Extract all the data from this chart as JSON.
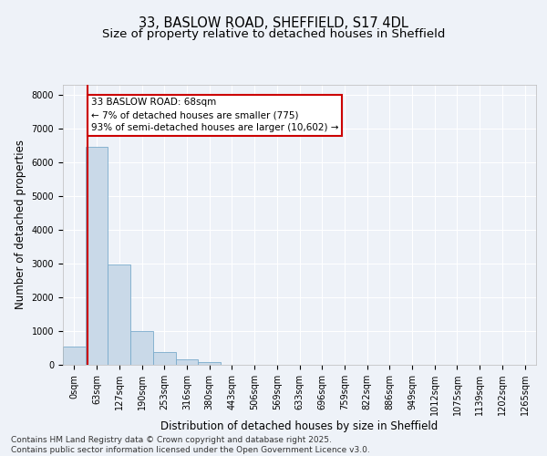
{
  "title_line1": "33, BASLOW ROAD, SHEFFIELD, S17 4DL",
  "title_line2": "Size of property relative to detached houses in Sheffield",
  "xlabel": "Distribution of detached houses by size in Sheffield",
  "ylabel": "Number of detached properties",
  "bar_labels": [
    "0sqm",
    "63sqm",
    "127sqm",
    "190sqm",
    "253sqm",
    "316sqm",
    "380sqm",
    "443sqm",
    "506sqm",
    "569sqm",
    "633sqm",
    "696sqm",
    "759sqm",
    "822sqm",
    "886sqm",
    "949sqm",
    "1012sqm",
    "1075sqm",
    "1139sqm",
    "1202sqm",
    "1265sqm"
  ],
  "bar_values": [
    550,
    6450,
    2980,
    1000,
    370,
    150,
    90,
    0,
    0,
    0,
    0,
    0,
    0,
    0,
    0,
    0,
    0,
    0,
    0,
    0,
    0
  ],
  "bar_color": "#c9d9e8",
  "bar_edge_color": "#7aabcc",
  "annotation_line1": "33 BASLOW ROAD: 68sqm",
  "annotation_line2": "← 7% of detached houses are smaller (775)",
  "annotation_line3": "93% of semi-detached houses are larger (10,602) →",
  "vline_color": "#cc0000",
  "annotation_box_edge_color": "#cc0000",
  "ylim": [
    0,
    8300
  ],
  "yticks": [
    0,
    1000,
    2000,
    3000,
    4000,
    5000,
    6000,
    7000,
    8000
  ],
  "footer_line1": "Contains HM Land Registry data © Crown copyright and database right 2025.",
  "footer_line2": "Contains public sector information licensed under the Open Government Licence v3.0.",
  "background_color": "#eef2f8",
  "plot_background_color": "#eef2f8",
  "grid_color": "#ffffff",
  "title_fontsize": 10.5,
  "subtitle_fontsize": 9.5,
  "axis_label_fontsize": 8.5,
  "tick_fontsize": 7,
  "annotation_fontsize": 7.5,
  "footer_fontsize": 6.5
}
